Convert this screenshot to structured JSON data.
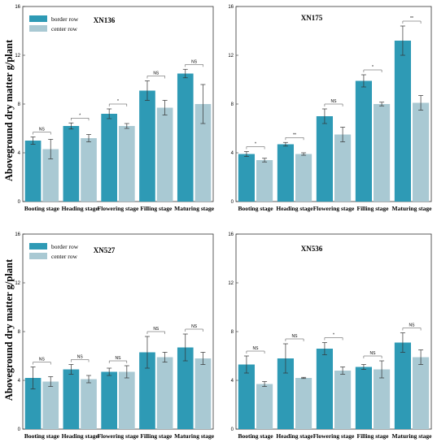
{
  "figure": {
    "ylabel": "Aboveground dry matter g/plant"
  },
  "chart_data": [
    {
      "type": "bar",
      "title": "XN136",
      "categories": [
        "Booting stage",
        "Heading stage",
        "Flowering stage",
        "Filling stage",
        "Maturing stage"
      ],
      "ylim": [
        0,
        16
      ],
      "yticks": [
        0,
        4,
        8,
        12,
        16
      ],
      "legend": "top-left",
      "series": [
        {
          "name": "border row",
          "color": "#2e9ab5",
          "values": [
            5.0,
            6.2,
            7.2,
            9.1,
            10.5
          ],
          "errors": [
            0.3,
            0.25,
            0.4,
            0.8,
            0.35
          ]
        },
        {
          "name": "center row",
          "color": "#a9c9d3",
          "values": [
            4.3,
            5.2,
            6.2,
            7.7,
            8.0
          ],
          "errors": [
            0.8,
            0.3,
            0.2,
            0.6,
            1.6
          ]
        }
      ],
      "significance": [
        "NS",
        "*",
        "*",
        "NS",
        "NS"
      ]
    },
    {
      "type": "bar",
      "title": "XN175",
      "categories": [
        "Booting stage",
        "Heading stage",
        "Flowering stage",
        "Filling stage",
        "Maturing stage"
      ],
      "ylim": [
        0,
        16
      ],
      "yticks": [
        0,
        4,
        8,
        12,
        16
      ],
      "series": [
        {
          "name": "border row",
          "color": "#2e9ab5",
          "values": [
            3.9,
            4.7,
            7.0,
            9.9,
            13.2
          ],
          "errors": [
            0.2,
            0.15,
            0.6,
            0.5,
            1.2
          ]
        },
        {
          "name": "center row",
          "color": "#a9c9d3",
          "values": [
            3.4,
            3.9,
            5.5,
            8.0,
            8.1
          ],
          "errors": [
            0.15,
            0.1,
            0.6,
            0.15,
            0.6
          ]
        }
      ],
      "significance": [
        "*",
        "**",
        "NS",
        "*",
        "**"
      ]
    },
    {
      "type": "bar",
      "title": "XN527",
      "categories": [
        "Booting stage",
        "Heading stage",
        "Flowering stage",
        "Filling stage",
        "Maturing stage"
      ],
      "ylim": [
        0,
        16
      ],
      "yticks": [
        0,
        4,
        8,
        12,
        16
      ],
      "legend": "top-left",
      "series": [
        {
          "name": "border row",
          "color": "#2e9ab5",
          "values": [
            4.2,
            4.9,
            4.7,
            6.3,
            6.7
          ],
          "errors": [
            0.9,
            0.4,
            0.3,
            1.3,
            1.1
          ]
        },
        {
          "name": "center row",
          "color": "#a9c9d3",
          "values": [
            3.9,
            4.1,
            4.7,
            5.9,
            5.8
          ],
          "errors": [
            0.4,
            0.3,
            0.5,
            0.4,
            0.5
          ]
        }
      ],
      "significance": [
        "NS",
        "NS",
        "NS",
        "NS",
        "NS"
      ]
    },
    {
      "type": "bar",
      "title": "XN536",
      "categories": [
        "Booting stage",
        "Heading stage",
        "Flowering stage",
        "Filling stage",
        "Maturing stage"
      ],
      "ylim": [
        0,
        16
      ],
      "yticks": [
        0,
        4,
        8,
        12,
        16
      ],
      "series": [
        {
          "name": "border row",
          "color": "#2e9ab5",
          "values": [
            5.3,
            5.8,
            6.6,
            5.1,
            7.1
          ],
          "errors": [
            0.7,
            1.2,
            0.5,
            0.2,
            0.8
          ]
        },
        {
          "name": "center row",
          "color": "#a9c9d3",
          "values": [
            3.7,
            4.2,
            4.8,
            4.9,
            5.9
          ],
          "errors": [
            0.2,
            0.05,
            0.3,
            0.7,
            0.6
          ]
        }
      ],
      "significance": [
        "NS",
        "NS",
        "*",
        "NS",
        "NS"
      ]
    }
  ]
}
